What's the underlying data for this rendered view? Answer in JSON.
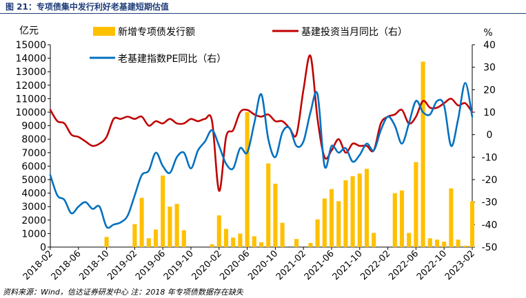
{
  "figure_title": "图 21：专项债集中发行利好老基建短期估值",
  "source_note": "资料来源：Wind，信达证券研发中心  注：2018 年专项债数据存在缺失",
  "chart_data": {
    "type": "bar+line",
    "left_unit": "亿元",
    "right_unit": "%",
    "left_ylim": [
      0,
      15000
    ],
    "right_ylim": [
      -50,
      40
    ],
    "left_ticks": [
      0,
      1000,
      2000,
      3000,
      4000,
      5000,
      6000,
      7000,
      8000,
      9000,
      10000,
      11000,
      12000,
      13000,
      14000,
      15000
    ],
    "right_ticks": [
      -50,
      -40,
      -30,
      -20,
      -10,
      0,
      10,
      20,
      30,
      40
    ],
    "x_ticks": [
      "2018-02",
      "2018-06",
      "2018-10",
      "2019-02",
      "2019-06",
      "2019-10",
      "2020-02",
      "2020-06",
      "2020-10",
      "2021-02",
      "2021-06",
      "2021-10",
      "2022-02",
      "2022-06",
      "2022-10",
      "2023-02"
    ],
    "x_tick_index": [
      0,
      4,
      8,
      12,
      16,
      20,
      24,
      28,
      32,
      36,
      40,
      44,
      48,
      52,
      56,
      60
    ],
    "months": [
      "2018-02",
      "2018-03",
      "2018-04",
      "2018-05",
      "2018-06",
      "2018-07",
      "2018-08",
      "2018-09",
      "2018-10",
      "2018-11",
      "2018-12",
      "2019-01",
      "2019-02",
      "2019-03",
      "2019-04",
      "2019-05",
      "2019-06",
      "2019-07",
      "2019-08",
      "2019-09",
      "2019-10",
      "2019-11",
      "2019-12",
      "2020-01",
      "2020-02",
      "2020-03",
      "2020-04",
      "2020-05",
      "2020-06",
      "2020-07",
      "2020-08",
      "2020-09",
      "2020-10",
      "2020-11",
      "2020-12",
      "2021-01",
      "2021-02",
      "2021-03",
      "2021-04",
      "2021-05",
      "2021-06",
      "2021-07",
      "2021-08",
      "2021-09",
      "2021-10",
      "2021-11",
      "2021-12",
      "2022-01",
      "2022-02",
      "2022-03",
      "2022-04",
      "2022-05",
      "2022-06",
      "2022-07",
      "2022-08",
      "2022-09",
      "2022-10",
      "2022-11",
      "2022-12",
      "2023-01",
      "2023-02"
    ],
    "series": [
      {
        "name": "新增专项债发行额",
        "axis": "left",
        "kind": "bar",
        "color": "#FFC000",
        "values": [
          null,
          null,
          null,
          null,
          null,
          null,
          null,
          null,
          750,
          null,
          null,
          null,
          1700,
          3650,
          650,
          1300,
          5300,
          3000,
          3200,
          1250,
          null,
          null,
          null,
          200,
          2350,
          1350,
          700,
          1000,
          10000,
          800,
          350,
          6200,
          4700,
          1800,
          null,
          600,
          null,
          300,
          2050,
          3600,
          4300,
          3400,
          4950,
          5250,
          5450,
          5800,
          1050,
          null,
          null,
          4000,
          4200,
          1050,
          6300,
          13750,
          650,
          550,
          400,
          4350,
          550,
          100,
          3400
        ]
      },
      {
        "name": "基建投资当月同比（右）",
        "axis": "right",
        "kind": "line",
        "color": "#C00000",
        "values": [
          11,
          6,
          5,
          0,
          -1,
          -3,
          -5,
          -4,
          -1,
          7,
          7,
          8,
          7,
          8,
          4,
          6,
          5,
          7,
          5,
          5,
          7,
          6,
          7,
          6,
          -25,
          -1,
          2,
          10,
          11,
          9,
          8,
          9,
          6,
          6,
          3,
          0,
          20,
          35,
          7,
          -10,
          -7,
          -2,
          -8,
          -4,
          -5,
          -5,
          -7,
          5,
          8,
          9,
          11,
          5,
          8,
          15,
          12,
          12,
          14,
          16,
          13,
          14,
          10
        ]
      },
      {
        "name": "老基建指数PE同比（右）",
        "axis": "right",
        "kind": "line",
        "color": "#0070C0",
        "values": [
          -18,
          -27,
          -29,
          -35,
          -32,
          -30,
          -33,
          -32,
          -41,
          -40,
          -39,
          -36,
          -27,
          -18,
          -16,
          -8,
          -14,
          -17,
          -10,
          -8,
          -15,
          -7,
          -3,
          2,
          -5,
          -13,
          -15,
          -6,
          -8,
          5,
          18,
          -2,
          -10,
          1,
          3,
          -5,
          -3,
          10,
          18,
          -14,
          -5,
          -8,
          -6,
          -12,
          -9,
          -4,
          -7,
          2,
          8,
          4,
          -4,
          5,
          15,
          10,
          9,
          15,
          13,
          -5,
          7,
          23,
          8
        ]
      }
    ]
  }
}
